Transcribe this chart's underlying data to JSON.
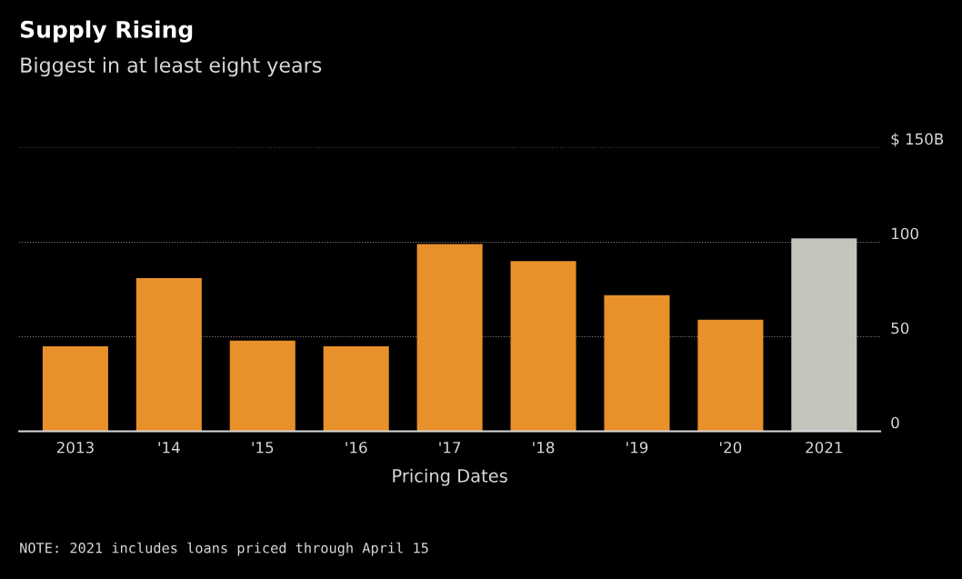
{
  "chart_data": {
    "type": "bar",
    "title": "Supply Rising",
    "subtitle": "Biggest in at least eight years",
    "categories": [
      "2013",
      "'14",
      "'15",
      "'16",
      "'17",
      "'18",
      "'19",
      "'20",
      "2021"
    ],
    "values": [
      45,
      81,
      48,
      45,
      99,
      90,
      72,
      59,
      102
    ],
    "colors": [
      "#e8912b",
      "#e8912b",
      "#e8912b",
      "#e8912b",
      "#e8912b",
      "#e8912b",
      "#e8912b",
      "#e8912b",
      "#c4c6be"
    ],
    "xlabel": "Pricing Dates",
    "ylim": [
      0,
      150
    ],
    "yticks": [
      0,
      50,
      100,
      {
        "value": 150,
        "label": "$ 150B"
      }
    ],
    "grid": "y",
    "line_style": "dotted",
    "annotations": [
      "NOTE: 2021 includes loans priced through April 15"
    ]
  }
}
